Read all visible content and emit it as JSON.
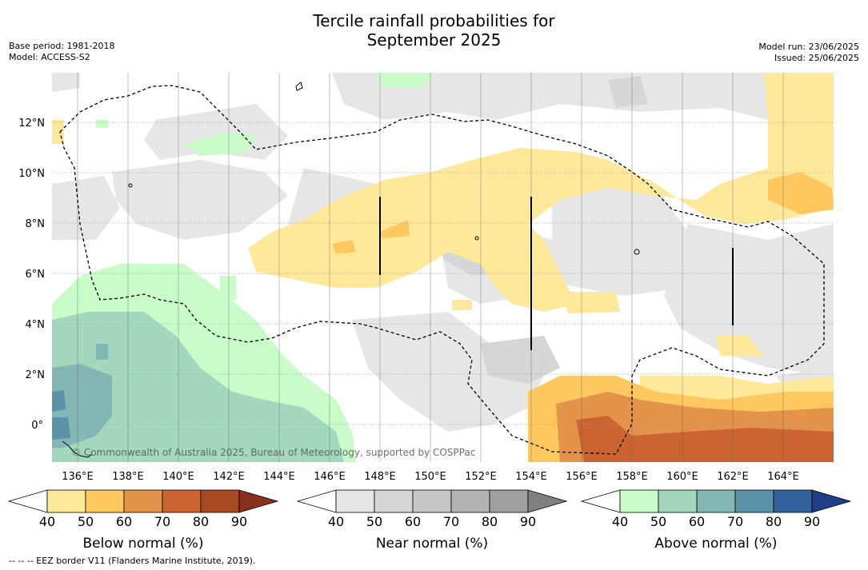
{
  "header": {
    "title_line1": "Tercile rainfall probabilities for",
    "title_line2": "September 2025",
    "base_period": "Base period: 1981-2018",
    "model": "Model: ACCESS-S2",
    "model_run": "Model run: 23/06/2025",
    "issued": "Issued: 25/06/2025"
  },
  "map": {
    "lat_labels": [
      "12°N",
      "10°N",
      "8°N",
      "6°N",
      "4°N",
      "2°N",
      "0°"
    ],
    "lon_labels": [
      "136°E",
      "138°E",
      "140°E",
      "142°E",
      "144°E",
      "146°E",
      "148°E",
      "150°E",
      "152°E",
      "154°E",
      "156°E",
      "158°E",
      "160°E",
      "162°E",
      "164°E"
    ],
    "copyright": "© Commonwealth of Australia 2025, Bureau of Meteorology, supported by COSPPac"
  },
  "colorbars": [
    {
      "label": "Below normal (%)",
      "ticks": [
        "40",
        "50",
        "60",
        "70",
        "80",
        "90"
      ],
      "colors": [
        "#ffffff",
        "#fee99a",
        "#fdc85e",
        "#e3944a",
        "#cc6432",
        "#aa4a24",
        "#8a2f1c"
      ]
    },
    {
      "label": "Near normal (%)",
      "ticks": [
        "40",
        "50",
        "60",
        "70",
        "80",
        "90"
      ],
      "colors": [
        "#ffffff",
        "#e6e6e6",
        "#d6d6d6",
        "#c6c6c6",
        "#b3b3b3",
        "#a0a0a0",
        "#808080"
      ]
    },
    {
      "label": "Above normal (%)",
      "ticks": [
        "40",
        "50",
        "60",
        "70",
        "80",
        "90"
      ],
      "colors": [
        "#ffffff",
        "#c9fcc9",
        "#a3d8be",
        "#82b7b4",
        "#5a93a8",
        "#30619a",
        "#1c3f86"
      ]
    }
  ],
  "footer": "--  --  -- EEZ border V11 (Flanders Marine Institute, 2019)."
}
